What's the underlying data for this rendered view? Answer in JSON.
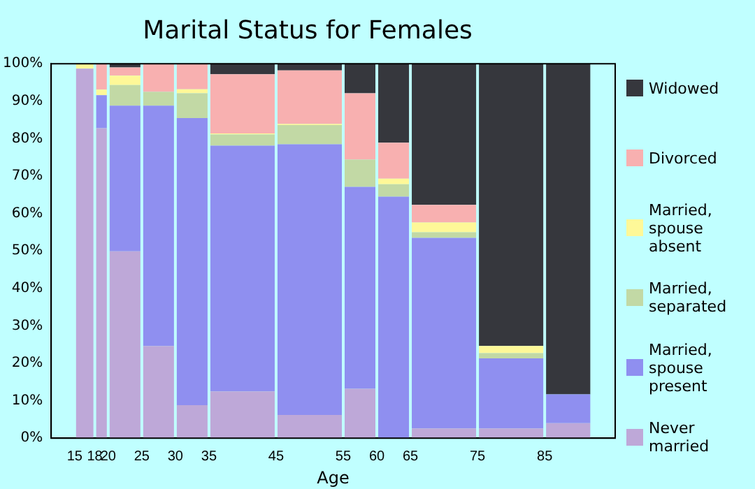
{
  "chart_data": {
    "type": "bar",
    "stacked": true,
    "title": "Marital Status for Females",
    "xlabel": "Age",
    "x": [
      16.5,
      19,
      22.5,
      27.5,
      32.5,
      40,
      50,
      57.5,
      62.5,
      70,
      80,
      88.5
    ],
    "xlim": [
      15,
      92
    ],
    "xticks": [
      15,
      18,
      20,
      25,
      30,
      35,
      45,
      55,
      60,
      65,
      75,
      85
    ],
    "ylim": [
      0,
      100
    ],
    "yticks": [
      {
        "value": 0,
        "label": "0%"
      },
      {
        "value": 10,
        "label": "10%"
      },
      {
        "value": 20,
        "label": "20%"
      },
      {
        "value": 30,
        "label": "30%"
      },
      {
        "value": 40,
        "label": "40%"
      },
      {
        "value": 50,
        "label": "50%"
      },
      {
        "value": 60,
        "label": "60%"
      },
      {
        "value": 70,
        "label": "70%"
      },
      {
        "value": 80,
        "label": "80%"
      },
      {
        "value": 90,
        "label": "90%"
      },
      {
        "value": 100,
        "label": "100%"
      }
    ],
    "legend": "right",
    "grid": false,
    "series": [
      {
        "name": "Never married",
        "color": "#bea8d8",
        "values": [
          98.7,
          82.8,
          49.9,
          24.6,
          8.8,
          12.5,
          6.2,
          13.2,
          0,
          2.6,
          2.6,
          4.0
        ]
      },
      {
        "name": "Married, spouse present",
        "color": "#8f8ff0",
        "values": [
          0,
          8.8,
          38.9,
          64.2,
          76.7,
          65.6,
          72.3,
          53.9,
          64.5,
          50.9,
          18.7,
          7.7
        ]
      },
      {
        "name": "Married, separated",
        "color": "#c2d9a5",
        "values": [
          0,
          0,
          5.5,
          3.7,
          6.6,
          3.0,
          5.1,
          7.3,
          3.3,
          1.5,
          1.4,
          0
        ]
      },
      {
        "name": "Married, spouse absent",
        "color": "#fef898",
        "values": [
          1.3,
          1.5,
          2.5,
          0,
          1.1,
          0.3,
          0.3,
          0,
          1.5,
          2.6,
          1.9,
          0
        ]
      },
      {
        "name": "Divorced",
        "color": "#f8b0b0",
        "values": [
          0,
          6.9,
          2.2,
          7.5,
          6.8,
          15.8,
          14.3,
          17.7,
          9.6,
          4.7,
          0,
          0
        ]
      },
      {
        "name": "Widowed",
        "color": "#36373d",
        "values": [
          0,
          0,
          1.0,
          0,
          0,
          2.8,
          1.8,
          7.9,
          21.1,
          37.7,
          75.4,
          88.3
        ]
      }
    ]
  }
}
